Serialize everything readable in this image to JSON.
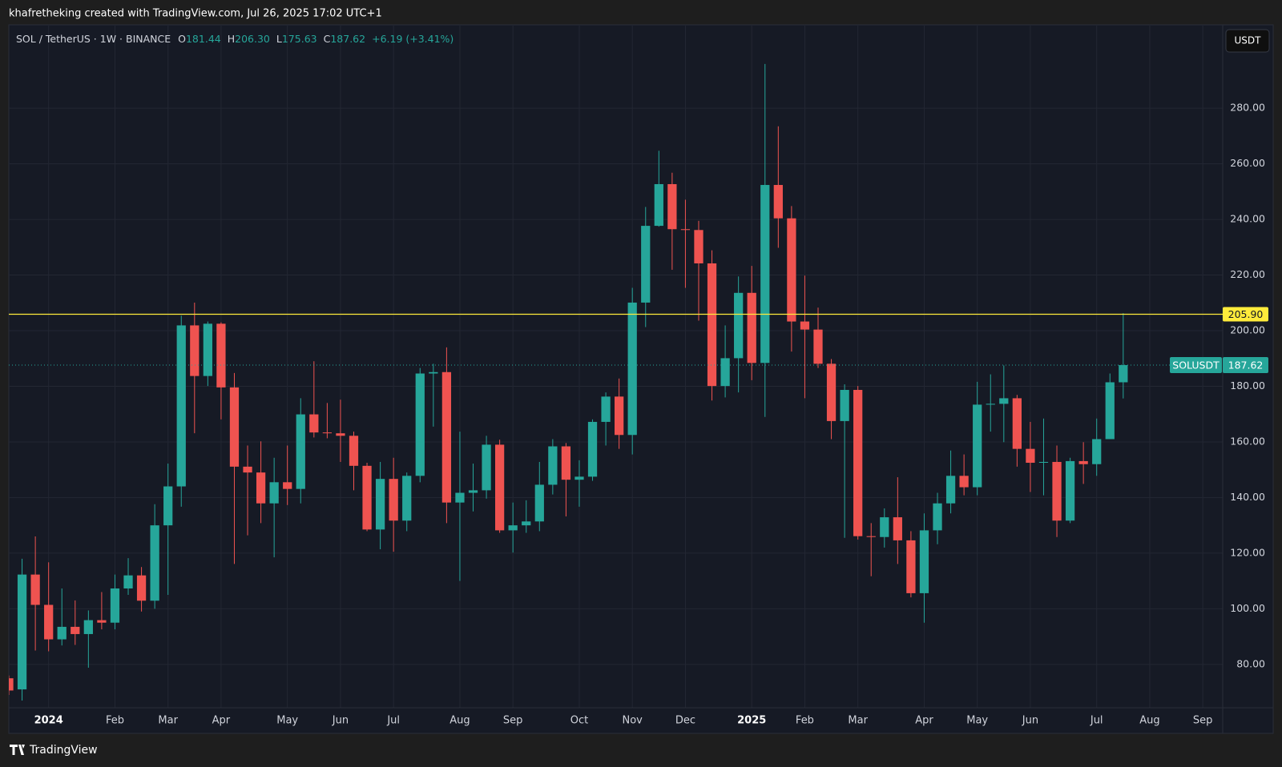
{
  "caption": "khafretheking created with TradingView.com, Jul 26, 2025 17:02 UTC+1",
  "brand": "TradingView",
  "chart_data": {
    "type": "candlestick",
    "title": "SOL / TetherUS · 1W · BINANCE",
    "legend": [
      {
        "key": "O",
        "text": "181.44"
      },
      {
        "key": "H",
        "text": "206.30"
      },
      {
        "key": "L",
        "text": "175.63"
      },
      {
        "key": "C",
        "text": "187.62"
      }
    ],
    "change": "+6.19 (+3.41%)",
    "currency": "USDT",
    "symbol": "SOLUSDT",
    "up_color": "#26a69a",
    "down_color": "#ef5350",
    "open": [
      75,
      71,
      112.3,
      101.4,
      89,
      93.5,
      90.9,
      95.9,
      95,
      107.3,
      112,
      102.9,
      130,
      144,
      201.9,
      183.7,
      202.5,
      179.6,
      151.1,
      149,
      137.9,
      145.5,
      143.1,
      169.9,
      163.4,
      163.1,
      162.2,
      151.4,
      128.5,
      146.7,
      131.7,
      147.8,
      184.6,
      185.1,
      138.2,
      141.7,
      142.6,
      159,
      128.2,
      130,
      131.4,
      144.6,
      158.4,
      146.4,
      147.5,
      167.2,
      176.3,
      162.5,
      210.1,
      237.7,
      252.7,
      236.5,
      236.2,
      224.2,
      180.1,
      190.1,
      213.6,
      188.4,
      252.4,
      240.4,
      203.3,
      200.4,
      188.1,
      167.5,
      178.7,
      126.1,
      125.8,
      132.9,
      124.6,
      105.6,
      128.2,
      137.9,
      147.8,
      143.7,
      173.4,
      173.7,
      175.7,
      157.5,
      152.5,
      152.8,
      131.7,
      153.1,
      152,
      161,
      181.44
    ],
    "high": [
      76,
      118,
      126,
      116.7,
      107.3,
      103,
      99.4,
      106,
      112.3,
      118.2,
      115,
      137.6,
      152.2,
      205.4,
      210.1,
      203.3,
      203,
      184.8,
      158.7,
      160.2,
      154.3,
      158.7,
      175.7,
      189,
      174,
      175.2,
      163.7,
      152.5,
      152.8,
      154.3,
      149,
      186.6,
      188.1,
      194,
      163.7,
      152.2,
      162.2,
      160.8,
      138.2,
      139,
      152.8,
      161,
      159.6,
      153.4,
      168.1,
      177.8,
      182.8,
      215.4,
      244.5,
      264.7,
      256.8,
      247.1,
      239.5,
      228.9,
      201.9,
      219.5,
      223.3,
      295.9,
      273.5,
      244.8,
      219.8,
      208.3,
      189.8,
      180.7,
      180.1,
      130.8,
      136.1,
      147.3,
      127.9,
      134.3,
      141.7,
      156.9,
      155.5,
      181.6,
      184.3,
      187.5,
      176.9,
      167.2,
      168.4,
      158.7,
      154.3,
      159.9,
      168.4,
      184.6,
      206.3
    ],
    "low": [
      69,
      67,
      85,
      84.7,
      86.8,
      87,
      78.8,
      92.6,
      92.6,
      105,
      99,
      100,
      105,
      136.7,
      163.1,
      180.1,
      168.1,
      116.1,
      126.4,
      130.8,
      118.5,
      137.3,
      137.9,
      161.6,
      161.3,
      152.8,
      142.6,
      127.9,
      121.4,
      120.5,
      127.9,
      145.5,
      165.5,
      130.8,
      110,
      135,
      139.6,
      127.3,
      120.2,
      127.3,
      127.9,
      141.1,
      133.2,
      136.7,
      146,
      158.7,
      157.5,
      155.5,
      201.3,
      237.4,
      221.9,
      215.4,
      203.6,
      174.9,
      176,
      177.8,
      182.2,
      169,
      229.8,
      192.5,
      175.7,
      186.6,
      161,
      125.5,
      124.9,
      111.7,
      122,
      116.1,
      104.1,
      95,
      123.2,
      134.3,
      140.8,
      140.8,
      163.7,
      159.9,
      151.1,
      142,
      140.8,
      125.8,
      130.8,
      144.9,
      147.8,
      161,
      175.63
    ],
    "close": [
      70.6,
      112.3,
      101.4,
      89,
      93.5,
      90.9,
      95.9,
      95,
      107.3,
      112,
      102.9,
      130,
      144,
      201.9,
      183.7,
      202.5,
      179.6,
      151.1,
      149,
      137.9,
      145.5,
      143.1,
      169.9,
      163.4,
      163.1,
      162.2,
      151.4,
      128.5,
      146.7,
      131.7,
      147.8,
      184.6,
      185.1,
      138.2,
      141.7,
      142.6,
      159,
      128.2,
      130,
      131.4,
      144.6,
      158.4,
      146.4,
      147.5,
      167.2,
      176.3,
      162.5,
      210.1,
      237.7,
      252.7,
      236.5,
      236.2,
      224.2,
      180.1,
      190.1,
      213.6,
      188.4,
      252.4,
      240.4,
      203.3,
      200.4,
      188.1,
      167.5,
      178.7,
      126.1,
      125.8,
      132.9,
      124.6,
      105.6,
      128.2,
      137.9,
      147.8,
      143.7,
      173.4,
      173.7,
      175.7,
      157.5,
      152.5,
      152.8,
      131.7,
      153.1,
      152,
      161,
      181.44,
      187.62
    ],
    "xlim": [
      0,
      91.5
    ],
    "xticks": [
      {
        "value": 3,
        "label": "2024"
      },
      {
        "value": 8,
        "label": "Feb"
      },
      {
        "value": 12,
        "label": "Mar"
      },
      {
        "value": 16,
        "label": "Apr"
      },
      {
        "value": 21,
        "label": "May"
      },
      {
        "value": 25,
        "label": "Jun"
      },
      {
        "value": 29,
        "label": "Jul"
      },
      {
        "value": 34,
        "label": "Aug"
      },
      {
        "value": 38,
        "label": "Sep"
      },
      {
        "value": 43,
        "label": "Oct"
      },
      {
        "value": 47,
        "label": "Nov"
      },
      {
        "value": 51,
        "label": "Dec"
      },
      {
        "value": 56,
        "label": "2025"
      },
      {
        "value": 60,
        "label": "Feb"
      },
      {
        "value": 64,
        "label": "Mar"
      },
      {
        "value": 69,
        "label": "Apr"
      },
      {
        "value": 73,
        "label": "May"
      },
      {
        "value": 77,
        "label": "Jun"
      },
      {
        "value": 82,
        "label": "Jul"
      },
      {
        "value": 86,
        "label": "Aug"
      },
      {
        "value": 90,
        "label": "Sep"
      }
    ],
    "bold_xticks": [
      "2024",
      "2025"
    ],
    "ylim": [
      64.4,
      309.7
    ],
    "yticks": [
      {
        "value": 80,
        "label": "80.00"
      },
      {
        "value": 100,
        "label": "100.00"
      },
      {
        "value": 120,
        "label": "120.00"
      },
      {
        "value": 140,
        "label": "140.00"
      },
      {
        "value": 160,
        "label": "160.00"
      },
      {
        "value": 180,
        "label": "180.00"
      },
      {
        "value": 200,
        "label": "200.00"
      },
      {
        "value": 220,
        "label": "220.00"
      },
      {
        "value": 240,
        "label": "240.00"
      },
      {
        "value": 260,
        "label": "260.00"
      },
      {
        "value": 280,
        "label": "280.00"
      }
    ],
    "grid": true,
    "hline": {
      "value": 205.9,
      "label": "205.90",
      "color": "#ffeb3b"
    }
  }
}
